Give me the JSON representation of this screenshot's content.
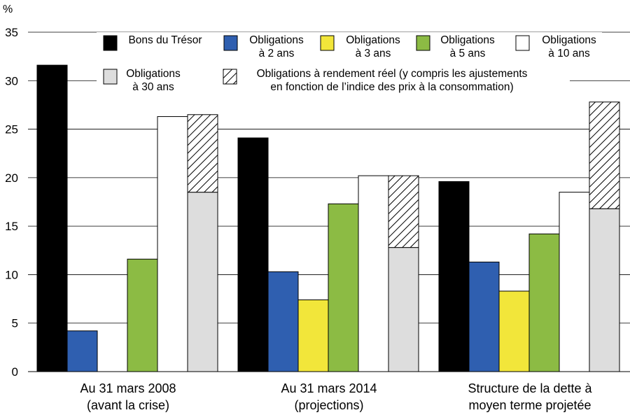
{
  "chart_data": {
    "type": "bar",
    "y_unit": "%",
    "ylim": [
      0,
      35
    ],
    "yticks": [
      0,
      5,
      10,
      15,
      20,
      25,
      30,
      35
    ],
    "grid": true,
    "categories": [
      [
        "Au 31 mars 2008",
        "(avant la crise)"
      ],
      [
        "Au 31 mars 2014",
        "(projections)"
      ],
      [
        "Structure de la dette à",
        "moyen terme projetée"
      ]
    ],
    "series": [
      {
        "name": [
          "Bons du Trésor"
        ],
        "color": "#000000",
        "values": [
          31.6,
          24.1,
          19.6
        ]
      },
      {
        "name": [
          "Obligations",
          "à 2 ans"
        ],
        "color": "#2f5fb0",
        "values": [
          4.2,
          10.3,
          11.3
        ]
      },
      {
        "name": [
          "Obligations",
          "à 3 ans"
        ],
        "color": "#f2e63a",
        "values": [
          0,
          7.4,
          8.3
        ]
      },
      {
        "name": [
          "Obligations",
          "à 5 ans"
        ],
        "color": "#8cbb44",
        "values": [
          11.6,
          17.3,
          14.2
        ]
      },
      {
        "name": [
          "Obligations",
          "à 10 ans"
        ],
        "color": "#ffffff",
        "values": [
          26.3,
          20.2,
          18.5
        ]
      },
      {
        "name": [
          "Obligations",
          "à 30 ans"
        ],
        "color": "#dddddd",
        "values": [
          18.5,
          12.8,
          16.8
        ]
      },
      {
        "name": [
          "Obligations à rendement réel (y compris les ajustements",
          "en fonction de l’indice des prix à la consommation)"
        ],
        "pattern": "hatch",
        "stacked_on": "Obligations à 30 ans",
        "values": [
          8.0,
          7.4,
          11.0
        ]
      }
    ],
    "legend_placement": "top"
  }
}
